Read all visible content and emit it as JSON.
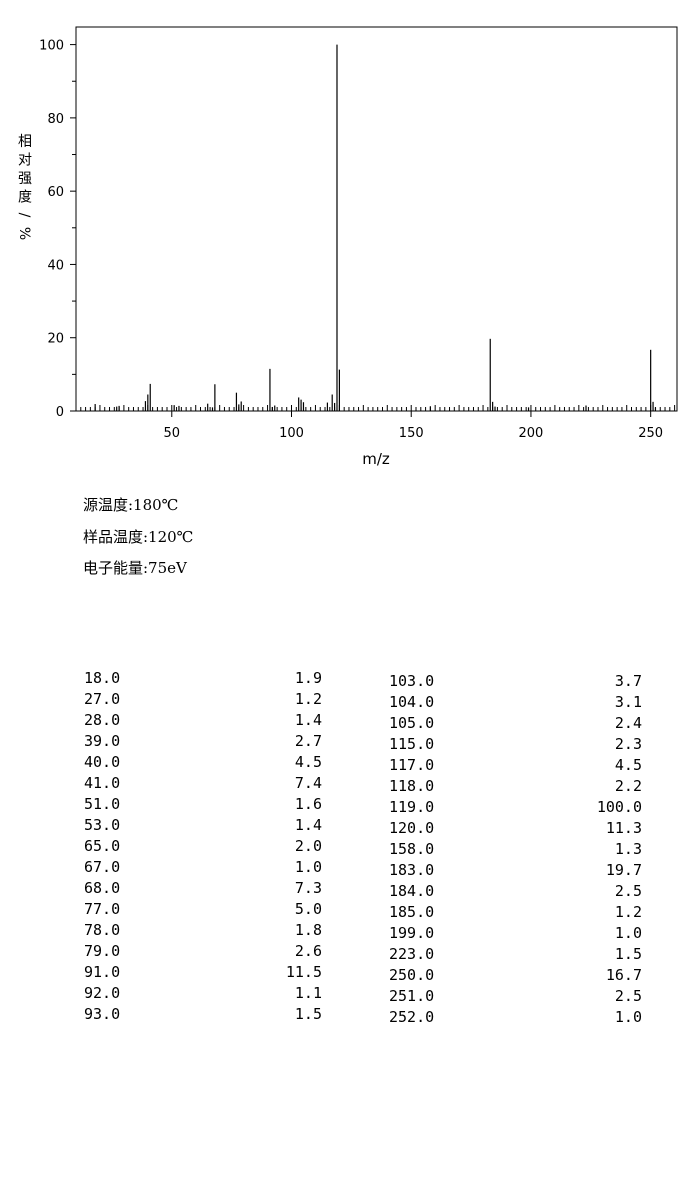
{
  "chart_data": {
    "type": "bar",
    "xlabel": "m/z",
    "ylabel": "相对强度/%",
    "xlim": [
      10,
      261
    ],
    "ylim": [
      0,
      105
    ],
    "x_ticks": [
      50,
      100,
      150,
      200,
      250
    ],
    "y_ticks": [
      0,
      20,
      40,
      60,
      80,
      100
    ],
    "grid": false,
    "bars": [
      {
        "x": 18.0,
        "y": 1.9
      },
      {
        "x": 27.0,
        "y": 1.2
      },
      {
        "x": 28.0,
        "y": 1.4
      },
      {
        "x": 39.0,
        "y": 2.7
      },
      {
        "x": 40.0,
        "y": 4.5
      },
      {
        "x": 41.0,
        "y": 7.4
      },
      {
        "x": 51.0,
        "y": 1.6
      },
      {
        "x": 53.0,
        "y": 1.4
      },
      {
        "x": 65.0,
        "y": 2.0
      },
      {
        "x": 67.0,
        "y": 1.0
      },
      {
        "x": 68.0,
        "y": 7.3
      },
      {
        "x": 77.0,
        "y": 5.0
      },
      {
        "x": 78.0,
        "y": 1.8
      },
      {
        "x": 79.0,
        "y": 2.6
      },
      {
        "x": 91.0,
        "y": 11.5
      },
      {
        "x": 92.0,
        "y": 1.1
      },
      {
        "x": 93.0,
        "y": 1.5
      },
      {
        "x": 103.0,
        "y": 3.7
      },
      {
        "x": 104.0,
        "y": 3.1
      },
      {
        "x": 105.0,
        "y": 2.4
      },
      {
        "x": 115.0,
        "y": 2.3
      },
      {
        "x": 117.0,
        "y": 4.5
      },
      {
        "x": 118.0,
        "y": 2.2
      },
      {
        "x": 119.0,
        "y": 100.0
      },
      {
        "x": 120.0,
        "y": 11.3
      },
      {
        "x": 158.0,
        "y": 1.3
      },
      {
        "x": 183.0,
        "y": 19.7
      },
      {
        "x": 184.0,
        "y": 2.5
      },
      {
        "x": 185.0,
        "y": 1.2
      },
      {
        "x": 199.0,
        "y": 1.0
      },
      {
        "x": 223.0,
        "y": 1.5
      },
      {
        "x": 250.0,
        "y": 16.7
      },
      {
        "x": 251.0,
        "y": 2.5
      },
      {
        "x": 252.0,
        "y": 1.0
      }
    ]
  },
  "conditions": [
    "源温度:180℃",
    "样品温度:120℃",
    "电子能量:75eV"
  ],
  "table_left": [
    {
      "mz": "18.0",
      "int": "1.9"
    },
    {
      "mz": "27.0",
      "int": "1.2"
    },
    {
      "mz": "28.0",
      "int": "1.4"
    },
    {
      "mz": "39.0",
      "int": "2.7"
    },
    {
      "mz": "40.0",
      "int": "4.5"
    },
    {
      "mz": "41.0",
      "int": "7.4"
    },
    {
      "mz": "51.0",
      "int": "1.6"
    },
    {
      "mz": "53.0",
      "int": "1.4"
    },
    {
      "mz": "65.0",
      "int": "2.0"
    },
    {
      "mz": "67.0",
      "int": "1.0"
    },
    {
      "mz": "68.0",
      "int": "7.3"
    },
    {
      "mz": "77.0",
      "int": "5.0"
    },
    {
      "mz": "78.0",
      "int": "1.8"
    },
    {
      "mz": "79.0",
      "int": "2.6"
    },
    {
      "mz": "91.0",
      "int": "11.5"
    },
    {
      "mz": "92.0",
      "int": "1.1"
    },
    {
      "mz": "93.0",
      "int": "1.5"
    }
  ],
  "table_right": [
    {
      "mz": "103.0",
      "int": "3.7"
    },
    {
      "mz": "104.0",
      "int": "3.1"
    },
    {
      "mz": "105.0",
      "int": "2.4"
    },
    {
      "mz": "115.0",
      "int": "2.3"
    },
    {
      "mz": "117.0",
      "int": "4.5"
    },
    {
      "mz": "118.0",
      "int": "2.2"
    },
    {
      "mz": "119.0",
      "int": "100.0"
    },
    {
      "mz": "120.0",
      "int": "11.3"
    },
    {
      "mz": "158.0",
      "int": "1.3"
    },
    {
      "mz": "183.0",
      "int": "19.7"
    },
    {
      "mz": "184.0",
      "int": "2.5"
    },
    {
      "mz": "185.0",
      "int": "1.2"
    },
    {
      "mz": "199.0",
      "int": "1.0"
    },
    {
      "mz": "223.0",
      "int": "1.5"
    },
    {
      "mz": "250.0",
      "int": "16.7"
    },
    {
      "mz": "251.0",
      "int": "2.5"
    },
    {
      "mz": "252.0",
      "int": "1.0"
    }
  ]
}
